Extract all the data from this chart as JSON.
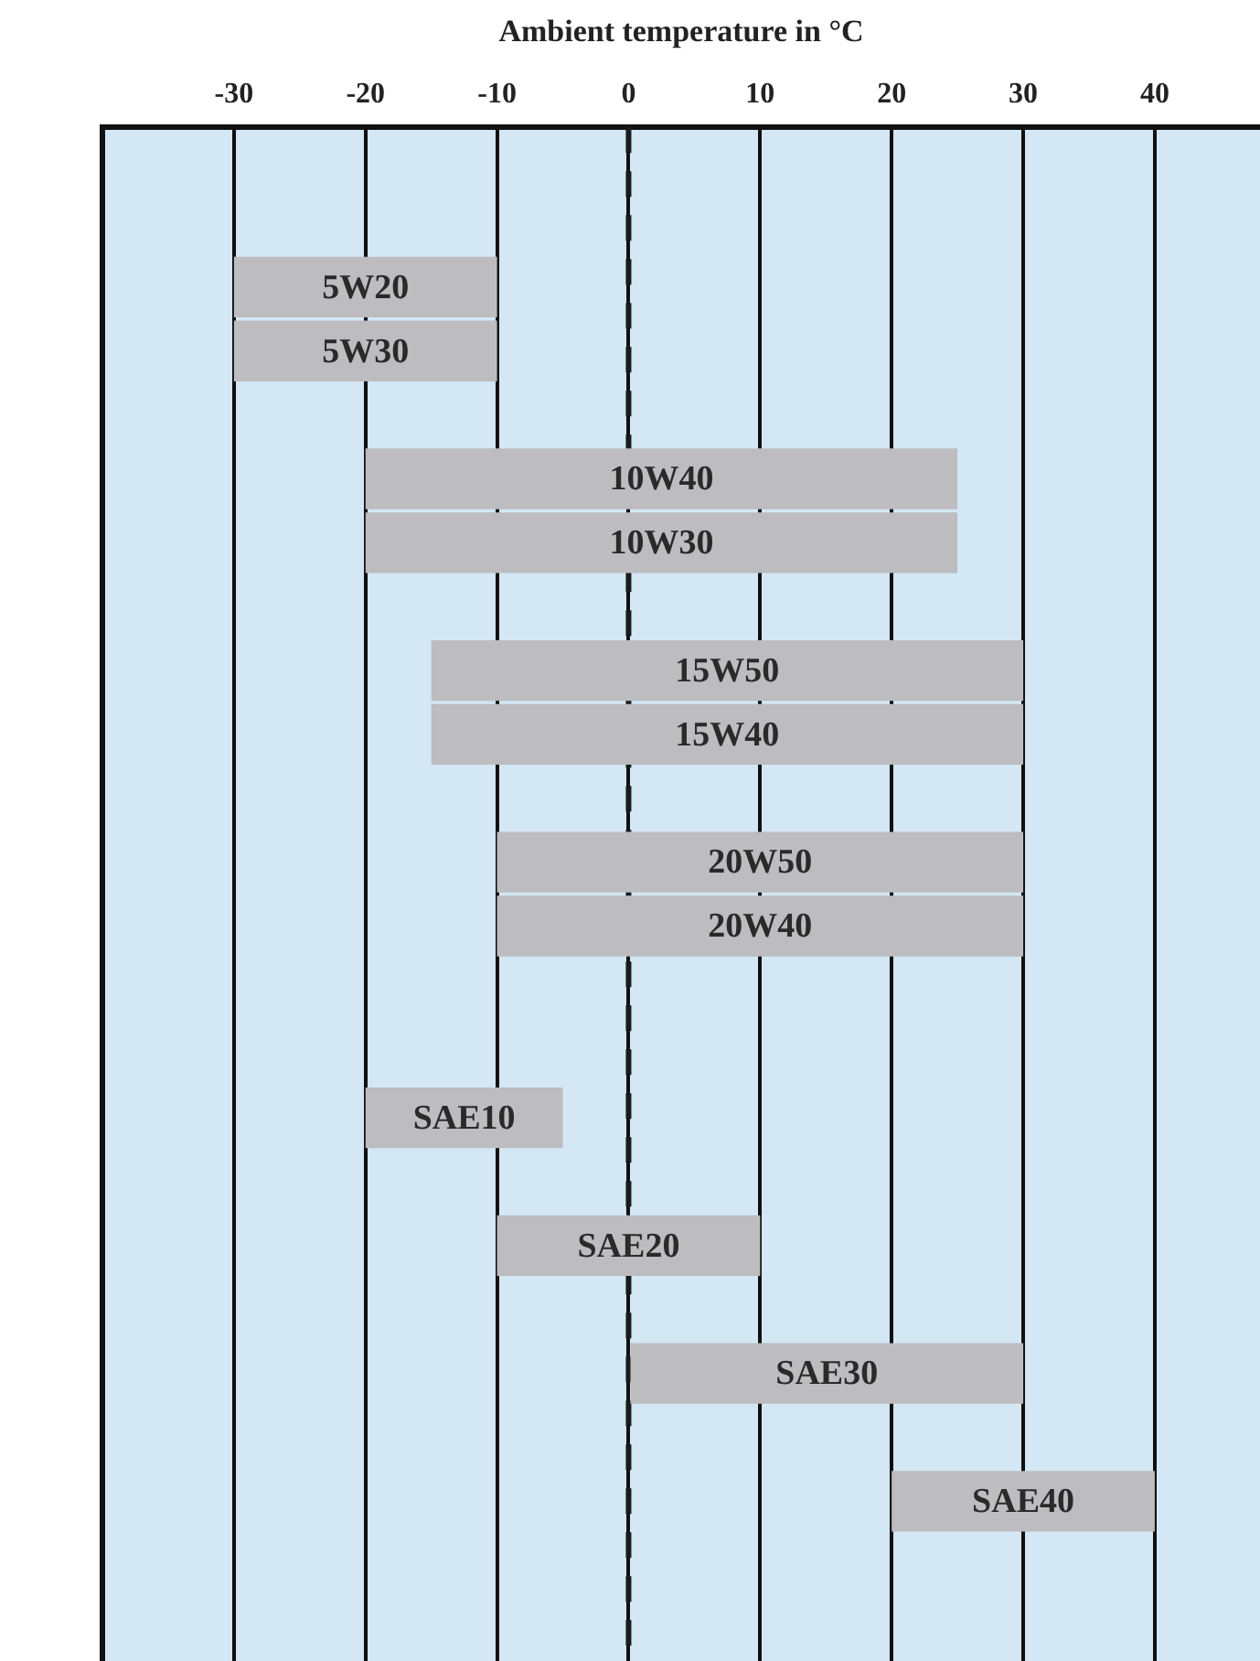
{
  "chart_data": {
    "type": "bar",
    "orientation": "horizontal",
    "xlabel": "Ambient temperature in °C",
    "categories": [
      null,
      null,
      "5W20",
      "5W30",
      null,
      "10W40",
      "10W30",
      null,
      "15W50",
      "15W40",
      null,
      "20W50",
      "20W40",
      null,
      null,
      "SAE10",
      null,
      "SAE20",
      null,
      "SAE30",
      null,
      "SAE40",
      null,
      null
    ],
    "base": [
      null,
      null,
      -30,
      -30,
      null,
      -20,
      -20,
      null,
      -15,
      -15,
      null,
      -10,
      -10,
      null,
      null,
      -20,
      null,
      -10,
      null,
      0,
      null,
      20,
      null,
      null
    ],
    "values": [
      null,
      null,
      20,
      20,
      null,
      45,
      45,
      null,
      45,
      45,
      null,
      40,
      40,
      null,
      null,
      15,
      null,
      20,
      null,
      30,
      null,
      20,
      null,
      null
    ],
    "color": "#bdbcbf",
    "xlim": [
      -40,
      48
    ],
    "xticks": [
      -30,
      -20,
      -10,
      0,
      10,
      20,
      30,
      40
    ],
    "grid": "x",
    "tick_labels": "x",
    "legend": false,
    "ref_lines": [
      {
        "axis": "x",
        "value": 0,
        "color": "#1a1a1a",
        "line_style": "dashed"
      }
    ]
  }
}
